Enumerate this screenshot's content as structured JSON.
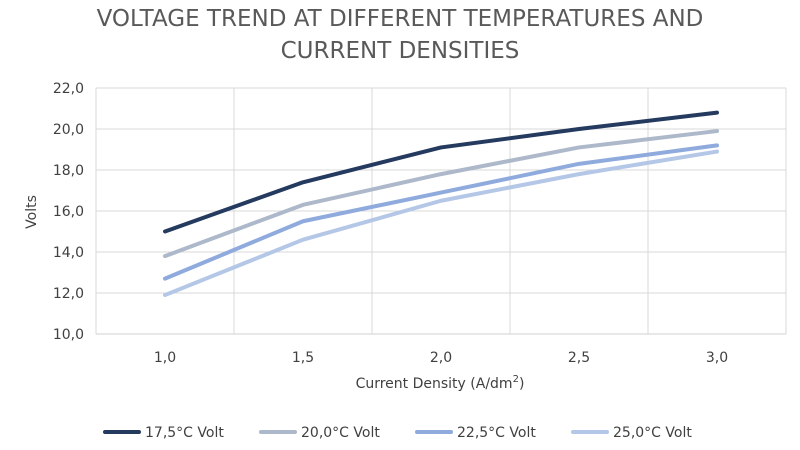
{
  "chart_data": {
    "type": "line",
    "title_lines": [
      "VOLTAGE TREND AT DIFFERENT TEMPERATURES AND",
      "CURRENT DENSITIES"
    ],
    "xlabel": "Current Density (A/dm",
    "xlabel_superscript": "2",
    "xlabel_suffix": ")",
    "ylabel": "Volts",
    "categories": [
      "1,0",
      "1,5",
      "2,0",
      "2,5",
      "3,0"
    ],
    "ylim": [
      10,
      22
    ],
    "yticks": [
      10,
      12,
      14,
      16,
      18,
      20,
      22
    ],
    "ytick_labels": [
      "10,0",
      "12,0",
      "14,0",
      "16,0",
      "18,0",
      "20,0",
      "22,0"
    ],
    "grid": true,
    "legend_position": "bottom",
    "series": [
      {
        "name": "17,5°C Volt",
        "color": "#243a5e",
        "values": [
          15.0,
          17.4,
          19.1,
          20.0,
          20.8
        ]
      },
      {
        "name": "20,0°C Volt",
        "color": "#adb9ca",
        "values": [
          13.8,
          16.3,
          17.8,
          19.1,
          19.9
        ]
      },
      {
        "name": "22,5°C Volt",
        "color": "#8faadc",
        "values": [
          12.7,
          15.5,
          16.9,
          18.3,
          19.2
        ]
      },
      {
        "name": "25,0°C Volt",
        "color": "#b4c7e7",
        "values": [
          11.9,
          14.6,
          16.5,
          17.8,
          18.9
        ]
      }
    ]
  }
}
